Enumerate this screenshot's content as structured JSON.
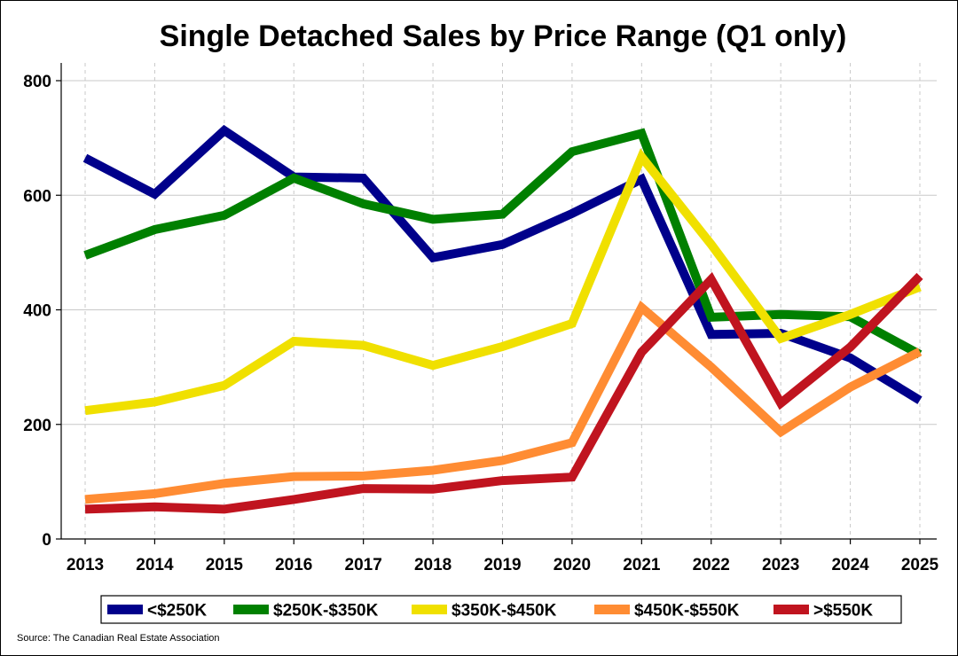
{
  "chart_data": {
    "type": "line",
    "title": "Single Detached Sales by Price Range (Q1 only)",
    "xlabel": "",
    "ylabel": "",
    "x": [
      "2013",
      "2014",
      "2015",
      "2016",
      "2017",
      "2018",
      "2019",
      "2020",
      "2021",
      "2022",
      "2023",
      "2024",
      "2025"
    ],
    "ylim": [
      0,
      800
    ],
    "yticks": [
      0,
      200,
      400,
      600,
      800
    ],
    "grid": true,
    "legend_position": "bottom",
    "series": [
      {
        "name": "<$250K",
        "color": "#00008B",
        "values": [
          665,
          602,
          713,
          632,
          630,
          491,
          514,
          568,
          628,
          357,
          359,
          316,
          242
        ]
      },
      {
        "name": "$250K-$350K",
        "color": "#008000",
        "values": [
          495,
          540,
          565,
          630,
          585,
          558,
          567,
          676,
          708,
          387,
          392,
          388,
          322
        ]
      },
      {
        "name": "$350K-$450K",
        "color": "#F0E000",
        "values": [
          224,
          239,
          268,
          345,
          338,
          303,
          336,
          376,
          667,
          514,
          350,
          392,
          440
        ]
      },
      {
        "name": "$450K-$550K",
        "color": "#FF8C33",
        "values": [
          69,
          79,
          97,
          109,
          110,
          120,
          137,
          168,
          404,
          300,
          187,
          265,
          327
        ]
      },
      {
        "name": ">$550K",
        "color": "#C0141F",
        "values": [
          52,
          56,
          52,
          69,
          88,
          87,
          102,
          108,
          326,
          453,
          237,
          335,
          459
        ]
      }
    ]
  },
  "footer": {
    "source": "Source: The Canadian Real Estate Association"
  }
}
